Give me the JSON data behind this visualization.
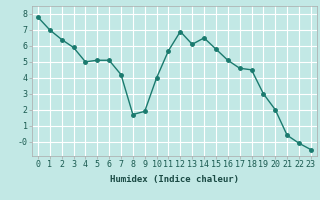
{
  "x": [
    0,
    1,
    2,
    3,
    4,
    5,
    6,
    7,
    8,
    9,
    10,
    11,
    12,
    13,
    14,
    15,
    16,
    17,
    18,
    19,
    20,
    21,
    22,
    23
  ],
  "y": [
    7.8,
    7.0,
    6.4,
    5.9,
    5.0,
    5.1,
    5.1,
    4.2,
    1.7,
    1.9,
    4.0,
    5.7,
    6.9,
    6.1,
    6.5,
    5.8,
    5.1,
    4.6,
    4.5,
    3.0,
    2.0,
    0.4,
    -0.1,
    -0.5
  ],
  "line_color": "#1a7a6e",
  "marker": "o",
  "markersize": 2.5,
  "linewidth": 1.0,
  "bg_color": "#c2e8e5",
  "grid_color": "#ffffff",
  "xlabel": "Humidex (Indice chaleur)",
  "ytick_labels": [
    "-0",
    "1",
    "2",
    "3",
    "4",
    "5",
    "6",
    "7",
    "8"
  ],
  "ytick_values": [
    0,
    1,
    2,
    3,
    4,
    5,
    6,
    7,
    8
  ],
  "xtick_labels": [
    "0",
    "1",
    "2",
    "3",
    "4",
    "5",
    "6",
    "7",
    "8",
    "9",
    "10",
    "11",
    "12",
    "13",
    "14",
    "15",
    "16",
    "17",
    "18",
    "19",
    "20",
    "21",
    "22",
    "23"
  ],
  "ylim": [
    -0.9,
    8.5
  ],
  "xlim": [
    -0.5,
    23.5
  ],
  "xlabel_fontsize": 6.5,
  "tick_fontsize": 6.0,
  "tick_color": "#1a5a50",
  "xlabel_color": "#1a4a44"
}
